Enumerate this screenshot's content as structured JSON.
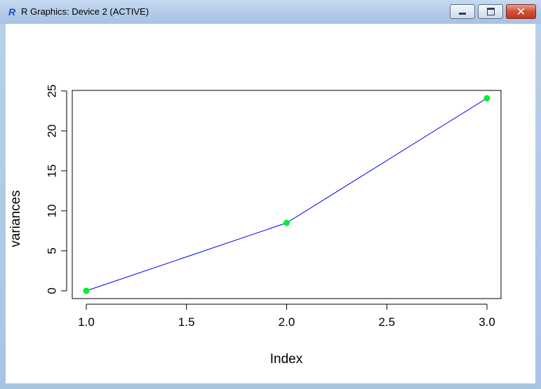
{
  "window": {
    "app_icon": "R",
    "title": "R Graphics: Device 2 (ACTIVE)",
    "buttons": {
      "minimize": "minimize-icon",
      "maximize": "maximize-icon",
      "close": "close-icon"
    }
  },
  "chart_data": {
    "type": "line",
    "x": [
      1.0,
      2.0,
      3.0
    ],
    "series": [
      {
        "values": [
          0.0,
          8.5,
          24.1
        ],
        "line_color": "#0000ff",
        "point_color": "#00ee33"
      }
    ],
    "xlabel": "Index",
    "ylabel": "variances",
    "xlim": [
      0.93,
      3.07
    ],
    "ylim": [
      -0.97,
      25.07
    ],
    "x_ticks": [
      1.0,
      1.5,
      2.0,
      2.5,
      3.0
    ],
    "x_tick_labels": [
      "1.0",
      "1.5",
      "2.0",
      "2.5",
      "3.0"
    ],
    "y_ticks": [
      0,
      5,
      10,
      15,
      20,
      25
    ],
    "y_tick_labels": [
      "0",
      "5",
      "10",
      "15",
      "20",
      "25"
    ],
    "grid": false,
    "legend": "none"
  }
}
